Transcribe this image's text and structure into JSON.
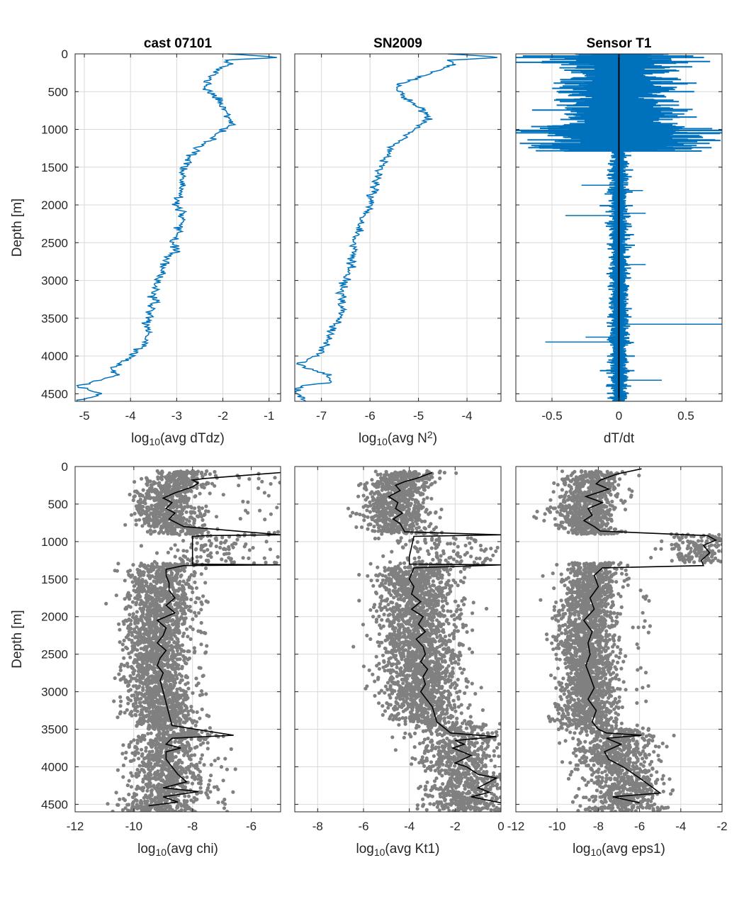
{
  "figure": {
    "background": "#ffffff",
    "line_color": "#0072bd",
    "scatter_color": "#808080",
    "avg_line_color": "#000000"
  },
  "chart_data": [
    {
      "id": "p1",
      "type": "line",
      "title": "cast 07101",
      "xlabel": {
        "pre": "log",
        "sub": "10",
        "post": "(avg dTdz)",
        "sup": ""
      },
      "ylabel": "Depth [m]",
      "xlim": [
        -5.2,
        -0.75
      ],
      "ylim": [
        0,
        4600
      ],
      "y_reversed": true,
      "grid": true,
      "xticks": [
        -5,
        -4,
        -3,
        -2,
        -1
      ],
      "xtick_labels": [
        "-5",
        "-4",
        "-3",
        "-2",
        "-1"
      ],
      "yticks": [
        0,
        500,
        1000,
        1500,
        2000,
        2500,
        3000,
        3500,
        4000,
        4500
      ],
      "ytick_labels": [
        "0",
        "500",
        "1000",
        "1500",
        "2000",
        "2500",
        "3000",
        "3500",
        "4000",
        "4500"
      ],
      "series": [
        {
          "style": "line-blue",
          "jitter": 0.05,
          "jseed": 11,
          "x": [
            -1.9,
            -1.1,
            -0.8,
            -1.9,
            -1.8,
            -2.1,
            -2.2,
            -2.35,
            -2.3,
            -2.4,
            -2.25,
            -2.1,
            -2.0,
            -1.85,
            -1.9,
            -1.8,
            -2.0,
            -2.3,
            -2.6,
            -2.5,
            -2.7,
            -2.75,
            -2.85,
            -2.85,
            -2.9,
            -2.9,
            -3.0,
            -3.0,
            -2.9,
            -2.9,
            -3.0,
            -2.95,
            -3.1,
            -3.0,
            -3.2,
            -3.3,
            -3.4,
            -3.5,
            -3.55,
            -3.65,
            -3.6,
            -3.7,
            -3.9,
            -4.05,
            -4.25,
            -4.4,
            -4.3,
            -4.5,
            -5.2,
            -4.6,
            -5.2
          ],
          "y": [
            0,
            30,
            50,
            80,
            130,
            200,
            270,
            350,
            400,
            450,
            520,
            600,
            700,
            800,
            850,
            920,
            1000,
            1150,
            1250,
            1300,
            1350,
            1400,
            1500,
            1600,
            1700,
            1800,
            1900,
            2000,
            2100,
            2200,
            2300,
            2400,
            2500,
            2600,
            2700,
            2800,
            3000,
            3200,
            3400,
            3600,
            3700,
            3850,
            3950,
            4050,
            4100,
            4150,
            4250,
            4300,
            4400,
            4500,
            4600
          ]
        }
      ]
    },
    {
      "id": "p2",
      "type": "line",
      "title": "SN2009",
      "xlabel": {
        "pre": "log",
        "sub": "10",
        "post": "(avg N",
        "sup": "2",
        "post2": ")"
      },
      "ylabel": "",
      "xlim": [
        -7.55,
        -3.3
      ],
      "ylim": [
        0,
        4600
      ],
      "y_reversed": true,
      "grid": true,
      "xticks": [
        -7,
        -6,
        -5,
        -4
      ],
      "xtick_labels": [
        "-7",
        "-6",
        "-5",
        "-4"
      ],
      "yticks": [
        0,
        500,
        1000,
        1500,
        2000,
        2500,
        3000,
        3500,
        4000,
        4500
      ],
      "ytick_labels": [],
      "series": [
        {
          "style": "line-blue",
          "jitter": 0.05,
          "jseed": 23,
          "x": [
            -4.4,
            -3.6,
            -3.35,
            -4.4,
            -4.3,
            -4.5,
            -4.8,
            -5.15,
            -5.4,
            -5.5,
            -5.35,
            -5.25,
            -5.0,
            -4.85,
            -4.8,
            -4.9,
            -5.1,
            -5.3,
            -5.5,
            -5.6,
            -5.7,
            -5.75,
            -5.8,
            -5.9,
            -5.9,
            -5.95,
            -6.0,
            -6.05,
            -6.15,
            -6.2,
            -6.25,
            -6.35,
            -6.3,
            -6.4,
            -6.45,
            -6.45,
            -6.5,
            -6.6,
            -6.6,
            -6.7,
            -6.9,
            -7.0,
            -7.3,
            -7.5,
            -7.35,
            -6.9,
            -6.8,
            -7.5,
            -7.55,
            -7.3
          ],
          "y": [
            0,
            30,
            50,
            80,
            130,
            200,
            270,
            350,
            400,
            450,
            520,
            600,
            700,
            800,
            850,
            920,
            1000,
            1100,
            1200,
            1300,
            1400,
            1500,
            1600,
            1700,
            1800,
            1900,
            2000,
            2100,
            2200,
            2300,
            2400,
            2500,
            2600,
            2700,
            2800,
            2900,
            3000,
            3200,
            3400,
            3600,
            3800,
            3950,
            4050,
            4100,
            4150,
            4250,
            4350,
            4400,
            4500,
            4600
          ]
        }
      ]
    },
    {
      "id": "p3",
      "type": "line",
      "title": "Sensor T1",
      "xlabel": {
        "pre": "dT/dt",
        "sub": "",
        "post": "",
        "sup": ""
      },
      "ylabel": "",
      "xlim": [
        -0.77,
        0.77
      ],
      "ylim": [
        0,
        4600
      ],
      "y_reversed": true,
      "grid": true,
      "xticks": [
        -0.5,
        0,
        0.5
      ],
      "xtick_labels": [
        "-0.5",
        "0",
        "0.5"
      ],
      "yticks": [
        0,
        500,
        1000,
        1500,
        2000,
        2500,
        3000,
        3500,
        4000,
        4500
      ],
      "ytick_labels": [],
      "signal": {
        "color": "#0072bd",
        "bands": [
          {
            "y0": 0,
            "y1": 120,
            "amp": 0.77
          },
          {
            "y0": 120,
            "y1": 950,
            "amp": 0.5
          },
          {
            "y0": 950,
            "y1": 1290,
            "amp": 0.77
          },
          {
            "y0": 1290,
            "y1": 4600,
            "amp": 0.08
          }
        ],
        "spikes": [
          {
            "y": 1740,
            "x": -0.28
          },
          {
            "y": 1810,
            "x": 0.18
          },
          {
            "y": 2140,
            "x": -0.4
          },
          {
            "y": 2110,
            "x": 0.2
          },
          {
            "y": 2790,
            "x": 0.2
          },
          {
            "y": 3580,
            "x": 0.77
          },
          {
            "y": 3750,
            "x": -0.25
          },
          {
            "y": 3815,
            "x": -0.55
          },
          {
            "y": 4320,
            "x": 0.32
          }
        ],
        "center_x": 0
      }
    },
    {
      "id": "p4",
      "type": "scatter",
      "title": "",
      "xlabel": {
        "pre": "log",
        "sub": "10",
        "post": "(avg chi)",
        "sup": ""
      },
      "ylabel": "Depth [m]",
      "xlim": [
        -12,
        -5
      ],
      "ylim": [
        0,
        4600
      ],
      "y_reversed": true,
      "grid": true,
      "xticks": [
        -12,
        -10,
        -8,
        -6
      ],
      "xtick_labels": [
        "-12",
        "-10",
        "-8",
        "-6"
      ],
      "yticks": [
        0,
        500,
        1000,
        1500,
        2000,
        2500,
        3000,
        3500,
        4000,
        4500
      ],
      "ytick_labels": [
        "0",
        "500",
        "1000",
        "1500",
        "2000",
        "2500",
        "3000",
        "3500",
        "4000",
        "4500"
      ],
      "avg_line": {
        "x": [
          -5.0,
          -7.6,
          -8.0,
          -7.8,
          -8.0,
          -8.6,
          -9.0,
          -8.7,
          -8.9,
          -8.6,
          -8.8,
          -8.3,
          -5.0,
          -7.6,
          -8.0,
          -8.0,
          -5.0,
          -8.3,
          -8.9,
          -8.9,
          -8.8,
          -8.8,
          -8.6,
          -8.9,
          -8.6,
          -9.2,
          -8.9,
          -9.0,
          -9.2,
          -8.9,
          -9.1,
          -9.2,
          -9.0,
          -9.1,
          -9.0,
          -8.7,
          -6.6,
          -8.7,
          -8.9,
          -8.4,
          -8.9,
          -8.9,
          -8.7,
          -8.5,
          -8.2,
          -9.0,
          -7.8,
          -9.0,
          -8.5,
          -9.5
        ],
        "y": [
          80,
          160,
          180,
          220,
          270,
          350,
          420,
          480,
          560,
          620,
          700,
          800,
          910,
          920,
          930,
          1300,
          1310,
          1320,
          1370,
          1450,
          1550,
          1650,
          1750,
          1850,
          1950,
          2050,
          2150,
          2250,
          2350,
          2450,
          2550,
          2650,
          2750,
          2850,
          3000,
          3450,
          3580,
          3620,
          3700,
          3750,
          3800,
          3900,
          4000,
          4100,
          4200,
          4280,
          4330,
          4400,
          4470,
          4520
        ]
      },
      "cloud": [
        {
          "y0": 60,
          "y1": 900,
          "cx": -9.0,
          "sx": 0.55,
          "n": 800,
          "seed": 1,
          "tail": 0.03,
          "tailx": [
            -6.5,
            -5.0
          ]
        },
        {
          "y0": 900,
          "y1": 1290,
          "cx": -6.5,
          "sx": 0.9,
          "n": 110,
          "seed": 2,
          "tail": 0,
          "tailx": [
            -5,
            -5
          ]
        },
        {
          "y0": 1290,
          "y1": 3500,
          "cx": -9.3,
          "sx": 0.55,
          "n": 2000,
          "seed": 3,
          "tail": 0.01,
          "tailx": [
            -7.8,
            -7.5
          ]
        },
        {
          "y0": 3500,
          "y1": 4600,
          "cx": -9.1,
          "sx": 0.6,
          "n": 900,
          "seed": 4,
          "tail": 0.02,
          "tailx": [
            -7.5,
            -6.5
          ]
        }
      ]
    },
    {
      "id": "p5",
      "type": "scatter",
      "title": "",
      "xlabel": {
        "pre": "log",
        "sub": "10",
        "post": "(avg Kt1)",
        "sup": ""
      },
      "ylabel": "",
      "xlim": [
        -9,
        0
      ],
      "ylim": [
        0,
        4600
      ],
      "y_reversed": true,
      "grid": true,
      "xticks": [
        -8,
        -6,
        -4,
        -2,
        0
      ],
      "xtick_labels": [
        "-8",
        "-6",
        "-4",
        "-2",
        "0"
      ],
      "yticks": [
        0,
        500,
        1000,
        1500,
        2000,
        2500,
        3000,
        3500,
        4000,
        4500
      ],
      "ytick_labels": [],
      "avg_line": {
        "x": [
          -3.0,
          -3.7,
          -4.2,
          -4.6,
          -4.4,
          -4.9,
          -4.5,
          -4.6,
          -4.3,
          -4.7,
          -4.4,
          -4.2,
          0.0,
          -3.8,
          -4.0,
          -4.0,
          0.0,
          -3.8,
          -4.0,
          -3.8,
          -3.9,
          -3.5,
          -3.9,
          -3.4,
          -3.6,
          -3.3,
          -3.7,
          -3.4,
          -3.3,
          -3.5,
          -3.2,
          -3.4,
          -3.3,
          -3.5,
          -3.0,
          -2.8,
          -2.2,
          -0.2,
          -2.0,
          -1.6,
          -2.1,
          -1.3,
          -2.0,
          -1.5,
          -1.0,
          -0.2,
          -0.5,
          -1.0,
          -0.5,
          -1.3,
          0.0
        ],
        "y": [
          80,
          160,
          200,
          250,
          320,
          400,
          480,
          560,
          620,
          700,
          760,
          870,
          910,
          930,
          1200,
          1300,
          1310,
          1350,
          1500,
          1600,
          1700,
          1800,
          1900,
          2000,
          2100,
          2200,
          2300,
          2400,
          2500,
          2600,
          2700,
          2800,
          2900,
          3000,
          3200,
          3400,
          3550,
          3600,
          3650,
          3700,
          3750,
          3850,
          3950,
          4000,
          4100,
          4150,
          4200,
          4280,
          4340,
          4400,
          4480
        ]
      },
      "cloud": [
        {
          "y0": 60,
          "y1": 900,
          "cx": -4.6,
          "sx": 0.7,
          "n": 800,
          "seed": 5,
          "tail": 0,
          "tailx": [
            0,
            0
          ]
        },
        {
          "y0": 950,
          "y1": 1300,
          "cx": -1.5,
          "sx": 1.2,
          "n": 110,
          "seed": 6,
          "tail": 0,
          "tailx": [
            0,
            0
          ]
        },
        {
          "y0": 1300,
          "y1": 3400,
          "cx": -3.7,
          "sx": 0.8,
          "n": 2000,
          "seed": 7,
          "tail": 0.01,
          "tailx": [
            -2.0,
            -1.2
          ]
        },
        {
          "y0": 3400,
          "y1": 4600,
          "cx": -2.0,
          "sx": 0.9,
          "n": 900,
          "seed": 8,
          "tail": 0,
          "tailx": [
            0,
            0
          ]
        }
      ]
    },
    {
      "id": "p6",
      "type": "scatter",
      "title": "",
      "xlabel": {
        "pre": "log",
        "sub": "10",
        "post": "(avg eps1)",
        "sup": ""
      },
      "ylabel": "",
      "xlim": [
        -12,
        -2
      ],
      "ylim": [
        0,
        4600
      ],
      "y_reversed": true,
      "grid": true,
      "xticks": [
        -12,
        -10,
        -8,
        -6,
        -4,
        -2
      ],
      "xtick_labels": [
        "-12",
        "-10",
        "-8",
        "-6",
        "-4",
        "-2"
      ],
      "yticks": [
        0,
        500,
        1000,
        1500,
        2000,
        2500,
        3000,
        3500,
        4000,
        4500
      ],
      "ytick_labels": [],
      "avg_line": {
        "x": [
          -5.9,
          -7.1,
          -7.9,
          -8.1,
          -7.5,
          -8.6,
          -7.8,
          -8.5,
          -8.3,
          -8.7,
          -8.2,
          -7.9,
          -2.7,
          -2.3,
          -2.9,
          -2.6,
          -3.0,
          -2.9,
          -7.8,
          -8.2,
          -8.0,
          -8.4,
          -8.2,
          -8.7,
          -8.3,
          -8.5,
          -8.4,
          -8.6,
          -8.4,
          -8.2,
          -8.5,
          -8.1,
          -8.3,
          -8.0,
          -7.6,
          -5.9,
          -7.6,
          -6.9,
          -7.7,
          -7.5,
          -6.8,
          -6.0,
          -5.0,
          -7.3,
          -6.0
        ],
        "y": [
          30,
          100,
          180,
          230,
          300,
          400,
          480,
          560,
          650,
          720,
          800,
          860,
          920,
          980,
          1050,
          1150,
          1250,
          1320,
          1350,
          1450,
          1600,
          1750,
          1900,
          2050,
          2200,
          2350,
          2500,
          2650,
          2800,
          2950,
          3100,
          3250,
          3400,
          3500,
          3550,
          3580,
          3620,
          3700,
          3800,
          3900,
          4000,
          4150,
          4350,
          4400,
          4480
        ]
      },
      "cloud": [
        {
          "y0": 60,
          "y1": 900,
          "cx": -8.8,
          "sx": 0.7,
          "n": 800,
          "seed": 9,
          "tail": 0,
          "tailx": [
            0,
            0
          ]
        },
        {
          "y0": 900,
          "y1": 1280,
          "cx": -3.2,
          "sx": 0.9,
          "n": 170,
          "seed": 10,
          "tail": 0,
          "tailx": [
            0,
            0
          ]
        },
        {
          "y0": 1280,
          "y1": 3500,
          "cx": -8.6,
          "sx": 0.7,
          "n": 2000,
          "seed": 11,
          "tail": 0.01,
          "tailx": [
            -6.2,
            -5.4
          ]
        },
        {
          "y0": 3500,
          "y1": 4600,
          "cx": -7.2,
          "sx": 0.9,
          "n": 900,
          "seed": 12,
          "tail": 0,
          "tailx": [
            0,
            0
          ]
        }
      ]
    }
  ]
}
